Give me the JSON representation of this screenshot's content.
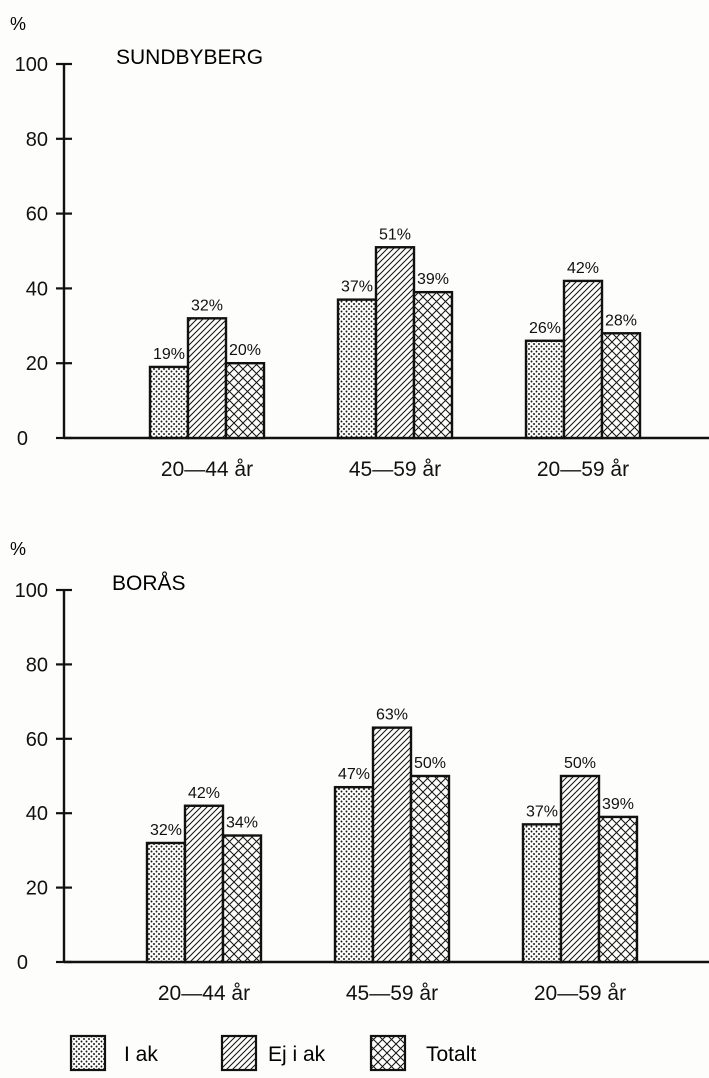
{
  "colors": {
    "ink": "#111111",
    "paper": "#fdfdfb"
  },
  "legend": {
    "items": [
      {
        "label": "I ak",
        "pattern": "dots"
      },
      {
        "label": "Ej i ak",
        "pattern": "diagonal"
      },
      {
        "label": "Totalt",
        "pattern": "crosshatch"
      }
    ]
  },
  "chart_data": [
    {
      "type": "bar",
      "title": "SUNDBYBERG",
      "ylabel": "%",
      "ylim": [
        0,
        100
      ],
      "yticks": [
        "0",
        "20",
        "40",
        "60",
        "80",
        "100"
      ],
      "categories": [
        "20—44 år",
        "45—59 år",
        "20—59 år"
      ],
      "series": [
        {
          "name": "I ak",
          "values": [
            19,
            37,
            26
          ],
          "labels": [
            "19%",
            "37%",
            "26%"
          ]
        },
        {
          "name": "Ej i ak",
          "values": [
            32,
            51,
            42
          ],
          "labels": [
            "32%",
            "51%",
            "42%"
          ]
        },
        {
          "name": "Totalt",
          "values": [
            20,
            39,
            28
          ],
          "labels": [
            "20%",
            "39%",
            "28%"
          ]
        }
      ],
      "legend": "bottom"
    },
    {
      "type": "bar",
      "title": "BORÅS",
      "ylabel": "%",
      "ylim": [
        0,
        100
      ],
      "yticks": [
        "0",
        "20",
        "40",
        "60",
        "80",
        "100"
      ],
      "categories": [
        "20—44 år",
        "45—59 år",
        "20—59 år"
      ],
      "series": [
        {
          "name": "I ak",
          "values": [
            32,
            47,
            37
          ],
          "labels": [
            "32%",
            "47%",
            "37%"
          ]
        },
        {
          "name": "Ej i ak",
          "values": [
            42,
            63,
            50
          ],
          "labels": [
            "42%",
            "63%",
            "50%"
          ]
        },
        {
          "name": "Totalt",
          "values": [
            34,
            50,
            39
          ],
          "labels": [
            "34%",
            "50%",
            "39%"
          ]
        }
      ],
      "legend": "bottom"
    }
  ]
}
